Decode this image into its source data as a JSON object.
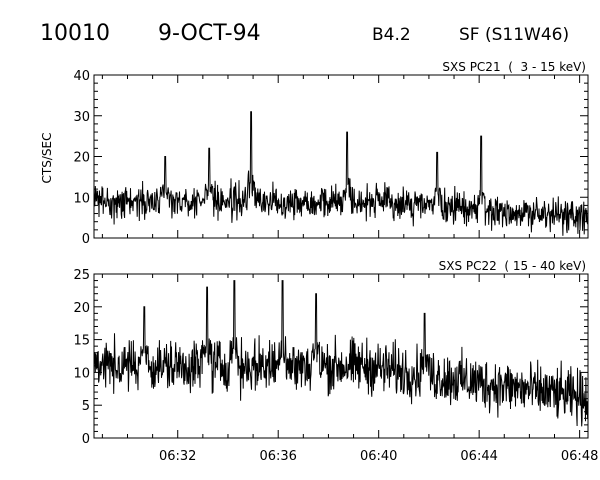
{
  "header": {
    "event_id": "10010",
    "date": "9-OCT-94",
    "flare_class": "B4.2",
    "flare_location": "SF (S11W46)"
  },
  "chart_data": [
    {
      "type": "line",
      "title": "SXS PC21  (  3 - 15 keV)",
      "xlabel": "",
      "ylabel": "CTS/SEC",
      "xlim": [
        "06:28:40",
        "06:48:20"
      ],
      "ylim": [
        0,
        40
      ],
      "y_ticks": [
        0,
        10,
        20,
        30,
        40
      ],
      "x_ticks": [
        "06:32",
        "06:36",
        "06:40",
        "06:44",
        "06:48"
      ],
      "x_tick_labels_shown": false,
      "grid": false,
      "baseline_level": 9,
      "baseline_level_end": 5,
      "peaks": [
        {
          "x": "06:34:55",
          "y": 31
        },
        {
          "x": "06:38:45",
          "y": 26
        },
        {
          "x": "06:44:05",
          "y": 25
        },
        {
          "x": "06:42:20",
          "y": 21
        },
        {
          "x": "06:33:15",
          "y": 22
        },
        {
          "x": "06:31:30",
          "y": 20
        }
      ]
    },
    {
      "type": "line",
      "title": "SXS PC22  ( 15 - 40 keV)",
      "xlabel": "",
      "ylabel": "",
      "xlim": [
        "06:28:40",
        "06:48:20"
      ],
      "ylim": [
        0,
        25
      ],
      "y_ticks": [
        0,
        5,
        10,
        15,
        20,
        25
      ],
      "x_ticks": [
        "06:32",
        "06:36",
        "06:40",
        "06:44",
        "06:48"
      ],
      "x_tick_labels_shown": true,
      "grid": false,
      "baseline_level": 11,
      "baseline_level_end": 6,
      "peaks": [
        {
          "x": "06:34:15",
          "y": 24
        },
        {
          "x": "06:36:10",
          "y": 24
        },
        {
          "x": "06:33:10",
          "y": 23
        },
        {
          "x": "06:37:30",
          "y": 22
        },
        {
          "x": "06:30:40",
          "y": 20
        },
        {
          "x": "06:41:50",
          "y": 19
        }
      ]
    }
  ]
}
